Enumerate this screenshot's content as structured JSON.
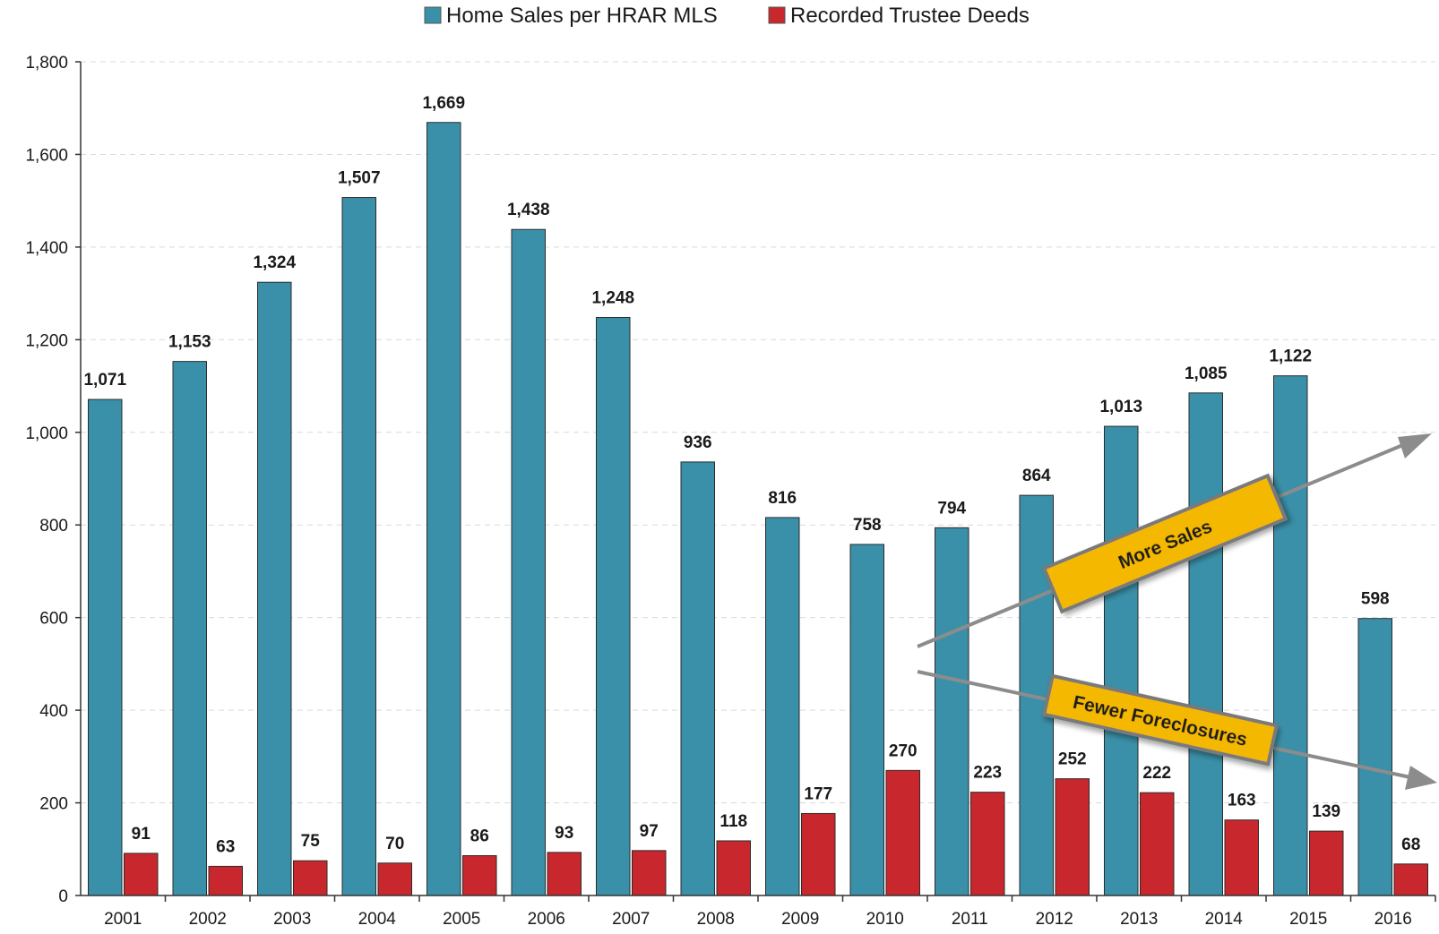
{
  "chart_data": {
    "type": "bar",
    "title": "",
    "xlabel": "",
    "ylabel": "",
    "categories": [
      "2001",
      "2002",
      "2003",
      "2004",
      "2005",
      "2006",
      "2007",
      "2008",
      "2009",
      "2010",
      "2011",
      "2012",
      "2013",
      "2014",
      "2015",
      "2016"
    ],
    "series": [
      {
        "name": "Home Sales per HRAR MLS",
        "color": "#3a90a8",
        "values": [
          1071,
          1153,
          1324,
          1507,
          1669,
          1438,
          1248,
          936,
          816,
          758,
          794,
          864,
          1013,
          1085,
          1122,
          598
        ]
      },
      {
        "name": "Recorded Trustee Deeds",
        "color": "#c8282d",
        "values": [
          91,
          63,
          75,
          70,
          86,
          93,
          97,
          118,
          177,
          270,
          223,
          252,
          222,
          163,
          139,
          68
        ]
      }
    ],
    "ylim": [
      0,
      1800
    ],
    "yticks": [
      0,
      200,
      400,
      600,
      800,
      1000,
      1200,
      1400,
      1600,
      1800
    ],
    "ytick_labels": [
      "0",
      "200",
      "400",
      "600",
      "800",
      "1,000",
      "1,200",
      "1,400",
      "1,600",
      "1,800"
    ],
    "grid": "horizontal dashed",
    "legend": "top-center",
    "data_labels": true,
    "annotations": [
      {
        "text": "More Sales",
        "direction": "up-right",
        "color": "#f5b800"
      },
      {
        "text": "Fewer Foreclosures",
        "direction": "down-right",
        "color": "#f5b800"
      }
    ]
  }
}
